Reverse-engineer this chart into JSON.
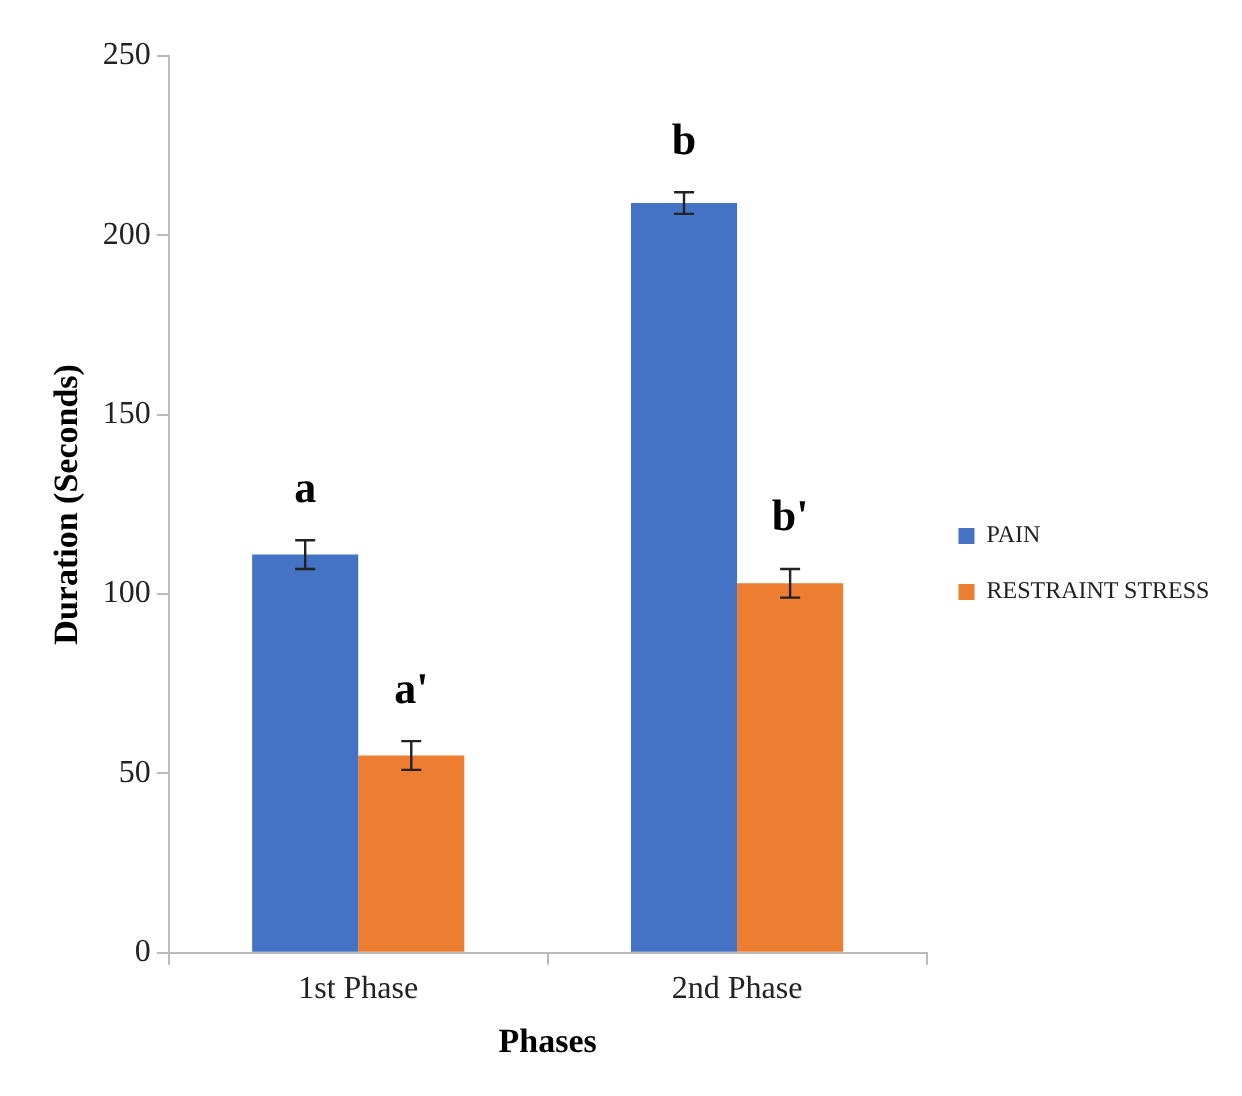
{
  "chart_data": {
    "type": "bar",
    "xlabel": "Phases",
    "ylabel": "Duration (Seconds)",
    "categories": [
      "1st Phase",
      "2nd Phase"
    ],
    "series": [
      {
        "name": "PAIN",
        "color": "#4472c4",
        "values": [
          111,
          209
        ],
        "errors": [
          4,
          3
        ]
      },
      {
        "name": "RESTRAINT STRESS",
        "color": "#ed7d31",
        "values": [
          55,
          103
        ],
        "errors": [
          4,
          4
        ]
      }
    ],
    "ylim": [
      0,
      250
    ],
    "yticks": [
      0,
      50,
      100,
      150,
      200,
      250
    ],
    "grid": false,
    "legend": "right",
    "annotations": [
      "a",
      "a'",
      "b",
      "b'"
    ]
  }
}
